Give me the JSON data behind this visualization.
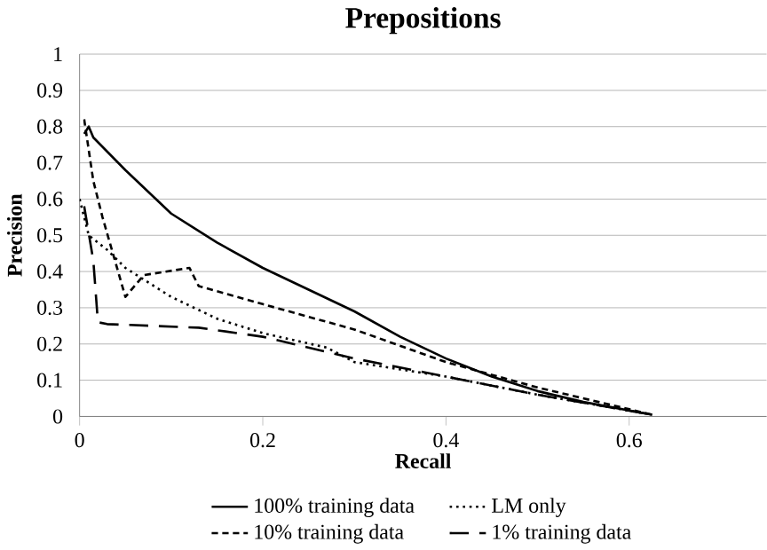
{
  "chart_data": {
    "type": "line",
    "title": "Prepositions",
    "xlabel": "Recall",
    "ylabel": "Precision",
    "xlim": [
      0,
      0.75
    ],
    "xticks": [
      0,
      0.2,
      0.4,
      0.6
    ],
    "ylim": [
      0,
      1
    ],
    "yticks": [
      0,
      0.1,
      0.2,
      0.3,
      0.4,
      0.5,
      0.6,
      0.7,
      0.8,
      0.9,
      1
    ],
    "grid": "y",
    "legend": "bottom",
    "marker": "none",
    "series": [
      {
        "name": "100% training data",
        "color": "#000000",
        "line_style": "solid",
        "x": [
          0.005,
          0.01,
          0.015,
          0.05,
          0.1,
          0.15,
          0.2,
          0.25,
          0.3,
          0.35,
          0.4,
          0.45,
          0.5,
          0.55,
          0.625
        ],
        "values": [
          0.78,
          0.8,
          0.77,
          0.68,
          0.56,
          0.48,
          0.41,
          0.35,
          0.29,
          0.22,
          0.16,
          0.11,
          0.07,
          0.04,
          0.005
        ]
      },
      {
        "name": "LM only",
        "color": "#000000",
        "line_style": "dotted",
        "x": [
          0,
          0.01,
          0.03,
          0.05,
          0.1,
          0.15,
          0.2,
          0.27,
          0.3,
          0.4,
          0.5,
          0.625
        ],
        "values": [
          0.6,
          0.5,
          0.46,
          0.41,
          0.33,
          0.27,
          0.23,
          0.19,
          0.15,
          0.11,
          0.06,
          0.005
        ]
      },
      {
        "name": "10% training data",
        "color": "#000000",
        "line_style": "dashed",
        "x": [
          0.005,
          0.015,
          0.025,
          0.05,
          0.07,
          0.12,
          0.13,
          0.2,
          0.3,
          0.4,
          0.5,
          0.625
        ],
        "values": [
          0.82,
          0.65,
          0.55,
          0.33,
          0.39,
          0.41,
          0.36,
          0.31,
          0.24,
          0.15,
          0.08,
          0.005
        ]
      },
      {
        "name": "1% training data",
        "color": "#000000",
        "line_style": "longdash",
        "x": [
          0.005,
          0.015,
          0.02,
          0.03,
          0.13,
          0.2,
          0.3,
          0.4,
          0.5,
          0.625
        ],
        "values": [
          0.58,
          0.43,
          0.26,
          0.255,
          0.245,
          0.22,
          0.16,
          0.11,
          0.06,
          0.005
        ]
      }
    ]
  }
}
